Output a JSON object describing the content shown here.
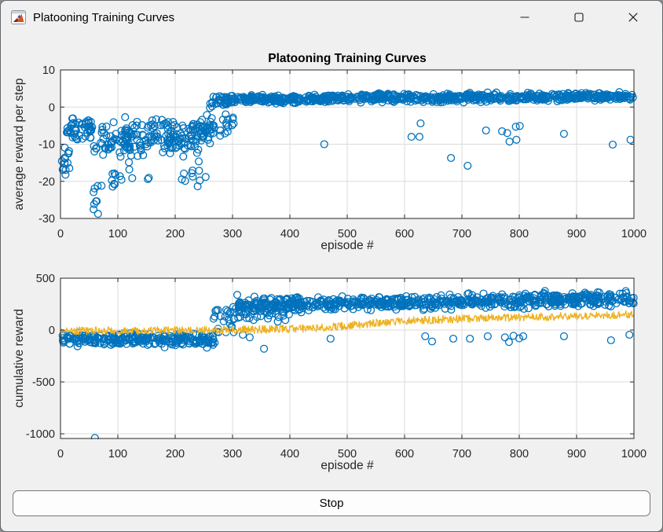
{
  "window": {
    "title": "Platooning Training Curves"
  },
  "stop_button": {
    "label": "Stop"
  },
  "colors": {
    "marker_blue": "#0072BD",
    "line_yellow": "#EDB120",
    "grid": "#dbdbdb",
    "axis": "#262626",
    "tick_text": "#262626",
    "figure_bg": "#f0f0f0",
    "plot_bg": "#ffffff",
    "button_bg": "#fdfdfd",
    "button_border": "#767676"
  },
  "seed": 20,
  "chart_data": [
    {
      "type": "scatter",
      "name": "top-plot-average-reward",
      "title": "Platooning Training Curves",
      "xlabel": "episode #",
      "ylabel": "average reward per step",
      "xlim": [
        0,
        1000
      ],
      "ylim": [
        -30,
        10
      ],
      "xticks": [
        0,
        100,
        200,
        300,
        400,
        500,
        600,
        700,
        800,
        900,
        1000
      ],
      "yticks": [
        10,
        0,
        -10,
        -20,
        -30
      ],
      "grid": true,
      "legend": "none",
      "series": [
        {
          "name": "average reward per step",
          "marker": "circle",
          "color": "#0072BD",
          "segments": [
            {
              "x": [
                1,
                16
              ],
              "y": [
                -15,
                -14
              ],
              "sd": 1.7,
              "n": 15
            },
            {
              "x": [
                10,
                58
              ],
              "y": [
                -6,
                -6
              ],
              "sd": 1.5,
              "n": 50
            },
            {
              "x": [
                57,
                74
              ],
              "y": [
                -23,
                -25
              ],
              "sd": 2.6,
              "n": 9
            },
            {
              "x": [
                58,
                118
              ],
              "y": [
                -9,
                -9.5
              ],
              "sd": 2.2,
              "n": 48
            },
            {
              "x": [
                86,
                126
              ],
              "y": [
                -18.5,
                -18.5
              ],
              "sd": 1.6,
              "n": 12
            },
            {
              "x": [
                112,
                262
              ],
              "y": [
                -7.5,
                -8
              ],
              "sd": 2.5,
              "n": 155
            },
            {
              "x": [
                148,
                258
              ],
              "y": [
                -19,
                -19
              ],
              "sd": 1.4,
              "n": 12
            },
            {
              "x": [
                228,
                304
              ],
              "y": [
                -5.5,
                -5
              ],
              "sd": 1.5,
              "n": 42
            },
            {
              "x": [
                260,
                300
              ],
              "y": [
                1.6,
                2.0
              ],
              "sd": 0.9,
              "n": 40
            },
            {
              "x": [
                300,
                1000
              ],
              "y": [
                2.1,
                2.9
              ],
              "sd": 0.5,
              "n": 700
            }
          ],
          "outliers": [
            [
              460,
              -10
            ],
            [
              612,
              -8
            ],
            [
              626,
              -8
            ],
            [
              628,
              -4.4
            ],
            [
              681,
              -13.7
            ],
            [
              710,
              -15.8
            ],
            [
              742,
              -6.3
            ],
            [
              770,
              -6.5
            ],
            [
              779,
              -7
            ],
            [
              783,
              -9.3
            ],
            [
              794,
              -5.3
            ],
            [
              795,
              -8.8
            ],
            [
              801,
              -5.1
            ],
            [
              878,
              -7.2
            ],
            [
              963,
              -10.1
            ],
            [
              994,
              -8.8
            ]
          ]
        }
      ]
    },
    {
      "type": "scatter+line",
      "name": "bottom-plot-cumulative-reward",
      "title": "",
      "xlabel": "episode #",
      "ylabel": "cumulative reward",
      "xlim": [
        0,
        1000
      ],
      "ylim": [
        -1045,
        500
      ],
      "xticks": [
        0,
        100,
        200,
        300,
        400,
        500,
        600,
        700,
        800,
        900,
        1000
      ],
      "yticks": [
        500,
        0,
        -500,
        -1000
      ],
      "grid": true,
      "legend": "none",
      "series": [
        {
          "name": "episode cumulative reward",
          "marker": "circle",
          "color": "#0072BD",
          "segments": [
            {
              "x": [
                1,
                270
              ],
              "y": [
                -90,
                -95
              ],
              "sd": 28,
              "n": 265
            },
            {
              "x": [
                266,
                312
              ],
              "y": [
                110,
                170
              ],
              "sd": 80,
              "n": 30
            },
            {
              "x": [
                310,
                420
              ],
              "y": [
                180,
                230
              ],
              "sd": 55,
              "n": 60
            },
            {
              "x": [
                310,
                1000
              ],
              "y": [
                240,
                300
              ],
              "sd": 32,
              "n": 640
            }
          ],
          "outliers": [
            [
              60,
              -1040
            ],
            [
              302,
              -20
            ],
            [
              318,
              -45
            ],
            [
              330,
              -70
            ],
            [
              355,
              -180
            ],
            [
              471,
              -83
            ],
            [
              636,
              -60
            ],
            [
              648,
              -110
            ],
            [
              685,
              -83
            ],
            [
              714,
              -83
            ],
            [
              745,
              -60
            ],
            [
              775,
              -70
            ],
            [
              782,
              -115
            ],
            [
              790,
              -55
            ],
            [
              800,
              -80
            ],
            [
              807,
              -60
            ],
            [
              878,
              -60
            ],
            [
              960,
              -98
            ],
            [
              992,
              -45
            ]
          ]
        },
        {
          "name": "running cumulative reward",
          "type": "noisy-line",
          "color": "#EDB120",
          "points": [
            [
              0,
              -8
            ],
            [
              150,
              -6
            ],
            [
              300,
              2
            ],
            [
              400,
              12
            ],
            [
              450,
              22
            ],
            [
              500,
              42
            ],
            [
              550,
              68
            ],
            [
              600,
              88
            ],
            [
              650,
              100
            ],
            [
              700,
              109
            ],
            [
              750,
              116
            ],
            [
              800,
              123
            ],
            [
              850,
              129
            ],
            [
              900,
              135
            ],
            [
              950,
              142
            ],
            [
              1000,
              150
            ]
          ],
          "noise": 38,
          "step": 1
        }
      ]
    }
  ]
}
